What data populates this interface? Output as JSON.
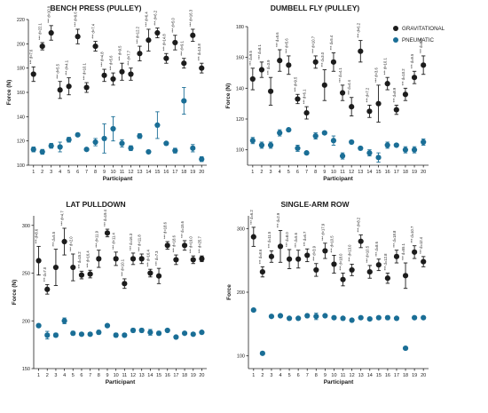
{
  "colors": {
    "gravitational": "#1c1c1c",
    "pneumatic": "#1a6e96"
  },
  "legend": {
    "placement": "top-right of figure",
    "gravitational": "GRAVITATIONAL",
    "pneumatic": "PNEUMATIC"
  },
  "chart_data": [
    {
      "type": "scatter",
      "title": "BENCH PRESS (PULLEY)",
      "xlabel": "Participant",
      "ylabel": "Force (N)",
      "x": [
        1,
        2,
        3,
        4,
        5,
        6,
        7,
        8,
        9,
        10,
        11,
        12,
        13,
        14,
        15,
        16,
        17,
        18,
        19,
        20
      ],
      "ylim": [
        100,
        220
      ],
      "yticks": [
        100,
        120,
        140,
        160,
        180,
        200,
        220
      ],
      "series": [
        {
          "name": "GRAVITATIONAL",
          "values": [
            175,
            198,
            209,
            162,
            165,
            206,
            164,
            198,
            174,
            171,
            177,
            175,
            192,
            203,
            209,
            188,
            201,
            184,
            207,
            180
          ],
          "errors": [
            6,
            3,
            6,
            7,
            7,
            6,
            4,
            4,
            5,
            5,
            7,
            5,
            6,
            9,
            4,
            4,
            6,
            4,
            5,
            4
          ],
          "labels": [
            "d=7.6",
            "d=22.1",
            "d=10.9",
            "d=5.5",
            "d=4.1",
            "d=9.6",
            "d=10.1",
            "d=7.4",
            "d=4.8",
            "d=5.6",
            "d=9.5",
            "d=7.7",
            "d=12.2",
            "d=6.4",
            "d=6.2",
            "d=14.8",
            "d=5.0",
            "d=9.1",
            "d=16.3",
            "d=13.8"
          ]
        },
        {
          "name": "PNEUMATIC",
          "values": [
            113,
            111,
            116,
            115,
            121,
            125,
            113,
            119,
            122,
            130,
            118,
            114,
            124,
            111,
            133,
            118,
            112,
            153,
            114,
            105
          ],
          "errors": [
            2,
            2,
            2,
            4,
            2,
            1,
            1,
            3,
            12,
            10,
            3,
            2,
            2,
            1,
            11,
            1,
            2,
            11,
            3,
            2
          ]
        }
      ]
    },
    {
      "type": "scatter",
      "title": "DUMBELL FLY (PULLEY)",
      "xlabel": "Participant",
      "ylabel": "Force (N)",
      "x": [
        1,
        2,
        3,
        4,
        5,
        6,
        7,
        8,
        9,
        10,
        11,
        12,
        13,
        14,
        15,
        16,
        17,
        18,
        19,
        20
      ],
      "ylim": [
        90,
        180
      ],
      "yticks": [
        100,
        120,
        140,
        160,
        180
      ],
      "series": [
        {
          "name": "GRAVITATIONAL",
          "values": [
            146,
            152,
            138,
            158,
            155,
            133,
            124,
            157,
            142,
            157,
            137,
            128,
            164,
            125,
            130,
            143,
            126,
            136,
            147,
            155
          ],
          "errors": [
            7,
            5,
            9,
            7,
            6,
            3,
            4,
            4,
            10,
            6,
            5,
            6,
            7,
            4,
            12,
            4,
            3,
            4,
            4,
            6
          ],
          "labels": [
            "d=9.5",
            "d=8.1",
            "d=3.9",
            "d=5.6",
            "d=5.6",
            "d=9.5",
            "d=6.1",
            "d=10.7",
            "d=3.0",
            "d=5.4",
            "d=4.1",
            "d=4.4",
            "d=6.2",
            "d=7.2",
            "d=3.6",
            "d=10.1",
            "d=8.9",
            "d=10.2",
            "d=9.5",
            "d=8.0"
          ]
        },
        {
          "name": "PNEUMATIC",
          "values": [
            106,
            103,
            103,
            111,
            113,
            101,
            98,
            109,
            111,
            106,
            96,
            105,
            101,
            98,
            95,
            103,
            103,
            100,
            100,
            105
          ],
          "errors": [
            2,
            2,
            2,
            2,
            1,
            2,
            1,
            2,
            1,
            3,
            2,
            1,
            1,
            2,
            3,
            2,
            1,
            2,
            2,
            2
          ]
        }
      ]
    },
    {
      "type": "scatter",
      "title": "LAT PULLDOWN",
      "xlabel": "Participant",
      "ylabel": "Force (N)",
      "x": [
        1,
        2,
        3,
        4,
        5,
        6,
        7,
        8,
        9,
        10,
        11,
        12,
        13,
        14,
        15,
        16,
        17,
        18,
        19,
        20
      ],
      "ylim": [
        150,
        310
      ],
      "yticks": [
        150,
        200,
        250,
        300
      ],
      "series": [
        {
          "name": "GRAVITATIONAL",
          "values": [
            263,
            233,
            256,
            283,
            256,
            248,
            249,
            265,
            292,
            265,
            239,
            265,
            265,
            250,
            247,
            279,
            264,
            279,
            264,
            265
          ],
          "errors": [
            15,
            5,
            19,
            14,
            14,
            4,
            4,
            9,
            4,
            7,
            5,
            6,
            5,
            4,
            8,
            4,
            5,
            5,
            4,
            3
          ],
          "labels": [
            "d=8.6",
            "d=7.0",
            "d=5.5",
            "d=4.7",
            "d=2.0",
            "d=15.2",
            "d=16.4",
            "d=11.9",
            "d=19.4",
            "d=11.4",
            "d=10.1",
            "d=16.3",
            "d=11.8",
            "d=16.4",
            "d=7.3",
            "d=18.6",
            "d=18.6",
            "d=15.6",
            "d=19.0",
            "d=25.7"
          ]
        },
        {
          "name": "PNEUMATIC",
          "values": [
            195,
            185,
            185,
            200,
            187,
            186,
            186,
            188,
            195,
            185,
            185,
            190,
            190,
            188,
            187,
            190,
            183,
            187,
            186,
            188
          ],
          "errors": [
            1,
            4,
            2,
            3,
            2,
            1,
            1,
            2,
            1,
            2,
            1,
            2,
            2,
            3,
            2,
            1,
            1,
            1,
            1,
            1
          ]
        }
      ]
    },
    {
      "type": "scatter",
      "title": "SINGLE-ARM ROW",
      "xlabel": "Participant",
      "ylabel": "Force",
      "x": [
        1,
        2,
        3,
        4,
        5,
        6,
        7,
        8,
        9,
        10,
        11,
        12,
        13,
        14,
        15,
        16,
        17,
        18,
        19,
        20
      ],
      "ylim": [
        80,
        320
      ],
      "yticks": [
        100,
        200,
        300
      ],
      "series": [
        {
          "name": "GRAVITATIONAL",
          "values": [
            287,
            232,
            256,
            272,
            252,
            252,
            258,
            235,
            265,
            244,
            220,
            235,
            280,
            232,
            243,
            222,
            256,
            226,
            263,
            248
          ],
          "errors": [
            15,
            8,
            9,
            25,
            15,
            14,
            10,
            10,
            12,
            14,
            10,
            9,
            10,
            10,
            9,
            8,
            10,
            20,
            10,
            8
          ],
          "labels": [
            "d=6.2",
            "d=8.6",
            "d=11.5",
            "d=2.9",
            "d=8.0",
            "d=5.6",
            "d=6.7",
            "d=3.9",
            "d=17.9",
            "d=10.5",
            "d=18.0",
            "d=13.0",
            "d=8.2",
            "d=10.5",
            "d=8.6",
            "d=12.8",
            "d=18.8",
            "d=55.1",
            "d=10.7",
            "d=12.4"
          ]
        },
        {
          "name": "PNEUMATIC",
          "values": [
            172,
            104,
            162,
            163,
            159,
            159,
            163,
            162,
            163,
            160,
            159,
            156,
            160,
            158,
            160,
            160,
            159,
            112,
            160,
            160
          ],
          "errors": [
            2,
            2,
            2,
            2,
            2,
            2,
            3,
            5,
            2,
            2,
            2,
            2,
            2,
            2,
            2,
            3,
            2,
            2,
            2,
            2
          ]
        }
      ]
    }
  ]
}
